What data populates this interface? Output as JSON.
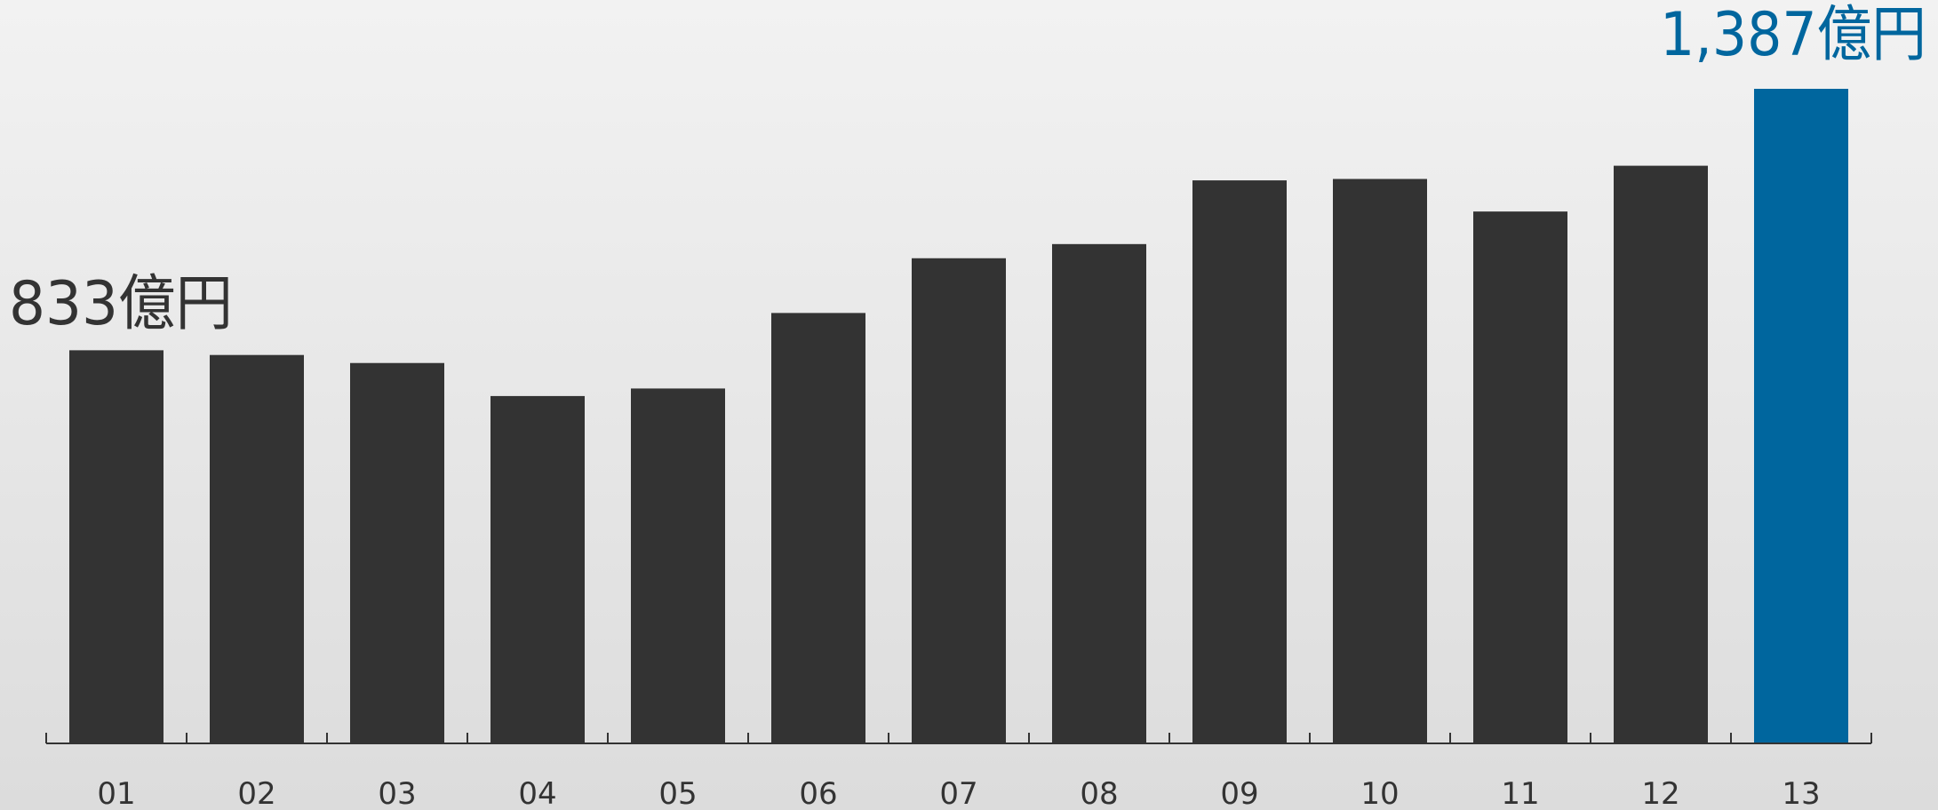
{
  "chart_data": {
    "type": "bar",
    "categories": [
      "01",
      "02",
      "03",
      "04",
      "05",
      "06",
      "07",
      "08",
      "09",
      "10",
      "11",
      "12",
      "13"
    ],
    "values": [
      833,
      823,
      806,
      736,
      752,
      912,
      1028,
      1058,
      1193,
      1196,
      1127,
      1224,
      1387
    ],
    "unit": "億円",
    "annotations": [
      {
        "category": "01",
        "text": "833億円"
      },
      {
        "category": "13",
        "text": "1,387億円"
      }
    ],
    "highlight_category": "13",
    "colors": {
      "bar": "#333333",
      "highlight": "#00669e",
      "axis": "#333333",
      "label": "#333333"
    },
    "ylim": [
      0,
      1387
    ],
    "grid": false,
    "legend": "none"
  }
}
